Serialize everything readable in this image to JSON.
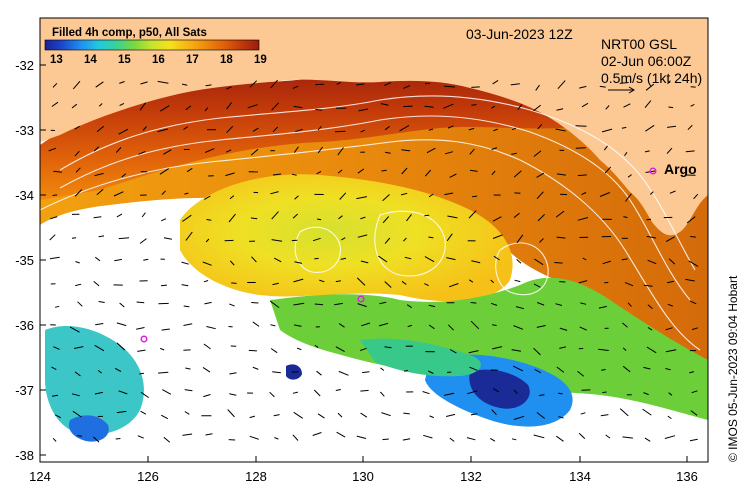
{
  "title": {
    "date": "03-Jun-2023 12Z",
    "product_line1": "NRT00 GSL",
    "product_line2": "02-Jun 06:00Z",
    "product_line3": "0.5m/s (1kt 24h)"
  },
  "colorbar": {
    "title": "Filled 4h comp, p50, All Sats",
    "ticks": [
      "13",
      "14",
      "15",
      "16",
      "17",
      "18",
      "19"
    ],
    "colors": [
      "#1a1f96",
      "#1a4ad0",
      "#1f8ff0",
      "#22c8e0",
      "#38d29a",
      "#7ad83e",
      "#c6e42a",
      "#f6e21e",
      "#f7b512",
      "#f08a0c",
      "#e0620a",
      "#c23a0a",
      "#9a1c0c"
    ]
  },
  "axes": {
    "x_ticks": [
      "124",
      "126",
      "128",
      "130",
      "132",
      "134",
      "136"
    ],
    "y_ticks": [
      "-32",
      "-33",
      "-34",
      "-35",
      "-36",
      "-37",
      "-38"
    ],
    "land_color": "#fcc893",
    "frame_color": "#000000"
  },
  "markers": {
    "argo_label": "Argo",
    "argo_color": "#e020e0"
  },
  "credit": "© IMOS 05-Jun-2023 09:04 Hobart"
}
